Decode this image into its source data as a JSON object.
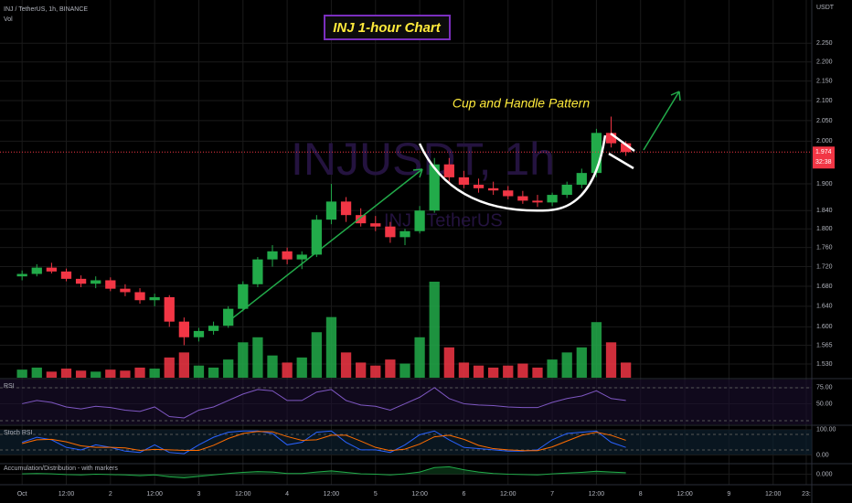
{
  "chart_data": [
    {
      "type": "candlestick",
      "symbol": "INJ / TetherUS, 1h, BINANCE",
      "volume_label": "Vol",
      "unit": "USDT",
      "title": "INJ 1-hour Chart",
      "annotation": "Cup and Handle Pattern",
      "watermark": "INJUSDT, 1h",
      "watermark_sub": "INJ / TetherUS",
      "last_price_label": "1.974",
      "countdown": "32:38",
      "log_scale": true,
      "up_color": "#22ab4a",
      "down_color": "#f23645",
      "x": [
        0,
        4,
        8,
        12,
        16,
        20,
        24,
        28,
        32,
        36,
        40,
        44,
        48,
        52,
        56,
        60,
        64,
        68,
        72,
        76,
        80,
        84,
        88,
        92,
        96,
        100,
        104,
        108,
        112,
        116,
        120,
        124,
        128,
        132,
        136,
        140,
        144,
        148,
        152,
        156,
        160,
        164
      ],
      "open": [
        1.7,
        1.705,
        1.718,
        1.71,
        1.695,
        1.685,
        1.692,
        1.675,
        1.668,
        1.652,
        1.658,
        1.61,
        1.58,
        1.592,
        1.602,
        1.635,
        1.684,
        1.735,
        1.752,
        1.735,
        1.745,
        1.82,
        1.86,
        1.83,
        1.812,
        1.805,
        1.782,
        1.795,
        1.84,
        1.945,
        1.915,
        1.898,
        1.89,
        1.885,
        1.872,
        1.862,
        1.858,
        1.875,
        1.898,
        1.925,
        2.02,
        1.995
      ],
      "high": [
        1.712,
        1.725,
        1.728,
        1.716,
        1.702,
        1.7,
        1.698,
        1.684,
        1.676,
        1.665,
        1.662,
        1.618,
        1.598,
        1.61,
        1.64,
        1.69,
        1.74,
        1.765,
        1.76,
        1.752,
        1.83,
        1.9,
        1.87,
        1.845,
        1.828,
        1.815,
        1.8,
        1.85,
        1.96,
        1.96,
        1.93,
        1.912,
        1.905,
        1.895,
        1.884,
        1.875,
        1.88,
        1.905,
        1.935,
        2.03,
        2.06,
        2.0
      ],
      "low": [
        1.692,
        1.7,
        1.706,
        1.69,
        1.678,
        1.676,
        1.67,
        1.66,
        1.645,
        1.64,
        1.6,
        1.565,
        1.572,
        1.585,
        1.598,
        1.63,
        1.678,
        1.72,
        1.725,
        1.715,
        1.74,
        1.81,
        1.815,
        1.805,
        1.795,
        1.77,
        1.765,
        1.79,
        1.835,
        1.905,
        1.89,
        1.88,
        1.875,
        1.865,
        1.855,
        1.848,
        1.85,
        1.868,
        1.89,
        1.915,
        1.985,
        1.965
      ],
      "close": [
        1.705,
        1.718,
        1.71,
        1.695,
        1.685,
        1.692,
        1.675,
        1.668,
        1.652,
        1.658,
        1.61,
        1.58,
        1.592,
        1.602,
        1.635,
        1.684,
        1.735,
        1.752,
        1.735,
        1.745,
        1.82,
        1.86,
        1.83,
        1.812,
        1.805,
        1.782,
        1.795,
        1.84,
        1.945,
        1.915,
        1.898,
        1.89,
        1.885,
        1.872,
        1.862,
        1.858,
        1.875,
        1.898,
        1.925,
        2.02,
        1.995,
        1.974
      ],
      "volume": [
        8,
        10,
        6,
        9,
        7,
        6,
        8,
        7,
        10,
        9,
        20,
        25,
        12,
        10,
        18,
        35,
        40,
        22,
        15,
        20,
        45,
        60,
        25,
        15,
        12,
        18,
        14,
        40,
        95,
        30,
        15,
        12,
        10,
        12,
        14,
        10,
        18,
        25,
        30,
        55,
        35,
        15
      ],
      "xlim": [
        -6,
        214.5
      ],
      "xticks": [
        {
          "value": 0,
          "label": "Oct"
        },
        {
          "value": 12,
          "label": "12:00"
        },
        {
          "value": 24,
          "label": "2"
        },
        {
          "value": 36,
          "label": "12:00"
        },
        {
          "value": 48,
          "label": "3"
        },
        {
          "value": 60,
          "label": "12:00"
        },
        {
          "value": 72,
          "label": "4"
        },
        {
          "value": 84,
          "label": "12:00"
        },
        {
          "value": 96,
          "label": "5"
        },
        {
          "value": 108,
          "label": "12:00"
        },
        {
          "value": 120,
          "label": "6"
        },
        {
          "value": 132,
          "label": "12:00"
        },
        {
          "value": 144,
          "label": "7"
        },
        {
          "value": 156,
          "label": "12:00"
        },
        {
          "value": 168,
          "label": "8"
        },
        {
          "value": 180,
          "label": "12:00"
        },
        {
          "value": 192,
          "label": "9"
        },
        {
          "value": 204,
          "label": "12:00"
        },
        {
          "value": 213,
          "label": "23:"
        }
      ],
      "ylim": [
        1.505,
        2.37
      ],
      "yticks": [
        {
          "value": 1.53,
          "label": "1.530"
        },
        {
          "value": 1.565,
          "label": "1.565"
        },
        {
          "value": 1.6,
          "label": "1.600"
        },
        {
          "value": 1.64,
          "label": "1.640"
        },
        {
          "value": 1.68,
          "label": "1.680"
        },
        {
          "value": 1.72,
          "label": "1.720"
        },
        {
          "value": 1.76,
          "label": "1.760"
        },
        {
          "value": 1.8,
          "label": "1.800"
        },
        {
          "value": 1.84,
          "label": "1.840"
        },
        {
          "value": 1.9,
          "label": "1.900"
        },
        {
          "value": 2.0,
          "label": "2.000"
        },
        {
          "value": 2.05,
          "label": "2.050"
        },
        {
          "value": 2.1,
          "label": "2.100"
        },
        {
          "value": 2.15,
          "label": "2.150"
        },
        {
          "value": 2.2,
          "label": "2.200"
        },
        {
          "value": 2.25,
          "label": "2.250"
        }
      ],
      "grid": true
    },
    {
      "type": "line",
      "title": "RSI",
      "series": [
        {
          "name": "RSI",
          "color": "#7e57c2",
          "values": [
            50,
            55,
            52,
            45,
            42,
            46,
            44,
            40,
            38,
            45,
            30,
            28,
            40,
            45,
            55,
            65,
            72,
            70,
            55,
            55,
            68,
            72,
            55,
            48,
            46,
            40,
            50,
            60,
            75,
            58,
            50,
            48,
            47,
            45,
            44,
            44,
            52,
            58,
            62,
            70,
            58,
            55
          ]
        }
      ],
      "ylim": [
        18,
        87.5
      ],
      "yticks": [
        {
          "value": 75,
          "label": "75.00"
        },
        {
          "value": 50,
          "label": "50.00"
        }
      ]
    },
    {
      "type": "line",
      "title": "Stoch RSI",
      "series": [
        {
          "name": "K",
          "color": "#2962ff",
          "values": [
            50,
            70,
            60,
            30,
            20,
            40,
            30,
            15,
            10,
            40,
            10,
            5,
            40,
            70,
            90,
            95,
            95,
            85,
            40,
            50,
            90,
            95,
            50,
            20,
            20,
            10,
            40,
            80,
            95,
            60,
            30,
            25,
            20,
            15,
            15,
            20,
            60,
            85,
            90,
            95,
            50,
            30
          ]
        },
        {
          "name": "D",
          "color": "#ff6d00",
          "values": [
            45,
            60,
            62,
            52,
            36,
            30,
            30,
            28,
            18,
            22,
            20,
            18,
            18,
            38,
            65,
            85,
            93,
            92,
            73,
            58,
            60,
            78,
            78,
            55,
            30,
            17,
            23,
            43,
            72,
            78,
            62,
            38,
            25,
            20,
            17,
            17,
            32,
            55,
            78,
            90,
            78,
            58
          ]
        }
      ],
      "ylim": [
        -31,
        114
      ],
      "yticks": [
        {
          "value": 100,
          "label": "100.00"
        },
        {
          "value": 0,
          "label": "0.00"
        }
      ]
    },
    {
      "type": "area",
      "title": "Accumulation/Distribution - with markers",
      "series": [
        {
          "name": "A/D",
          "color": "#22ab4a",
          "values": [
            0.05,
            0.1,
            0.05,
            -0.05,
            -0.1,
            0,
            -0.05,
            -0.1,
            -0.2,
            -0.1,
            -0.35,
            -0.5,
            -0.3,
            -0.1,
            0.1,
            0.25,
            0.35,
            0.3,
            0.1,
            0.1,
            0.3,
            0.45,
            0.25,
            0.05,
            0,
            -0.1,
            0.05,
            0.3,
            0.9,
            1.0,
            0.6,
            0.3,
            0.1,
            0,
            -0.05,
            -0.1,
            0.05,
            0.15,
            0.25,
            0.4,
            0.3,
            0.2
          ]
        }
      ],
      "ylim": [
        -1.3,
        1.3
      ],
      "yticks": [
        {
          "value": 0,
          "label": "0.000"
        }
      ]
    }
  ]
}
